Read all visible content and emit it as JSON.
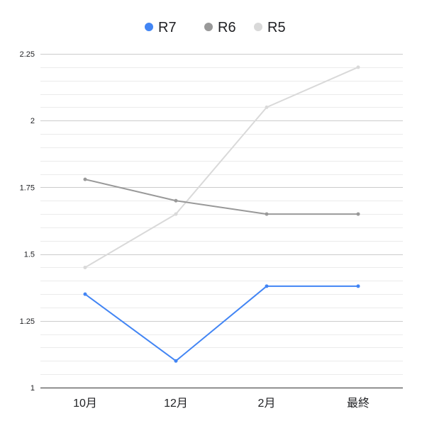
{
  "chart_data": {
    "type": "line",
    "title": "",
    "xlabel": "",
    "ylabel": "",
    "categories": [
      "10月",
      "12月",
      "2月",
      "最終"
    ],
    "ylim": [
      1,
      2.25
    ],
    "yticks": [
      1,
      1.25,
      1.5,
      1.75,
      2,
      2.25
    ],
    "ytick_labels": [
      "1",
      "1.25",
      "1.5",
      "1.75",
      "2",
      "2.25"
    ],
    "minor_grid_step": 0.05,
    "grid": true,
    "legend_position": "top",
    "series": [
      {
        "name": "R7",
        "color": "#4285f4",
        "values": [
          1.35,
          1.1,
          1.38,
          1.38
        ]
      },
      {
        "name": "R6",
        "color": "#999999",
        "values": [
          1.78,
          1.7,
          1.65,
          1.65
        ]
      },
      {
        "name": "R5",
        "color": "#d9d9d9",
        "values": [
          1.45,
          1.65,
          2.05,
          2.2
        ]
      }
    ]
  }
}
